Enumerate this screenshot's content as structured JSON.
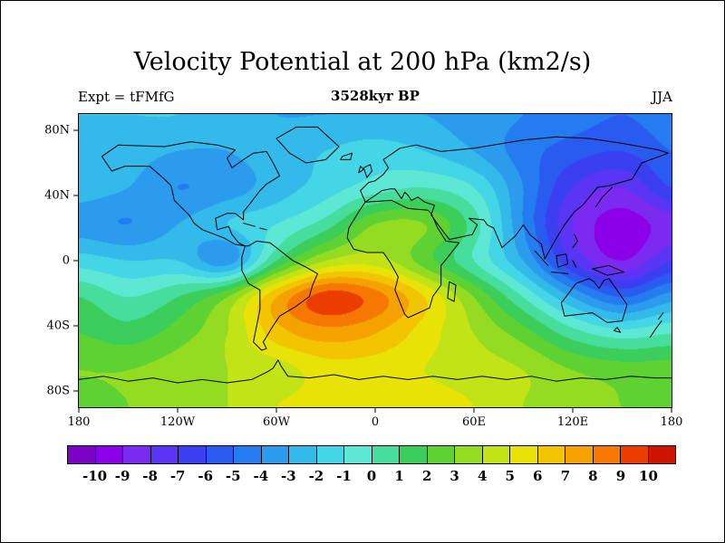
{
  "title": "Velocity Potential at 200 hPa (km2/s)",
  "expt_label": "Expt = tFMfG",
  "subtitle": "3528kyr BP",
  "season_label": "JJA",
  "axes": {
    "lat_ticks": [
      "80N",
      "40N",
      "0",
      "40S",
      "80S"
    ],
    "lon_ticks": [
      "180",
      "120W",
      "60W",
      "0",
      "60E",
      "120E",
      "180"
    ]
  },
  "colorbar": {
    "labels": [
      "-10",
      "-9",
      "-8",
      "-7",
      "-6",
      "-5",
      "-4",
      "-3",
      "-2",
      "-1",
      "0",
      "1",
      "2",
      "3",
      "4",
      "5",
      "6",
      "7",
      "8",
      "9",
      "10"
    ],
    "colors": [
      "#7d00c6",
      "#8b00e6",
      "#7b2af2",
      "#5a35f5",
      "#3a3ff2",
      "#2a5bf0",
      "#257cf0",
      "#2b9bee",
      "#33b9ea",
      "#44d5e6",
      "#5ce8d5",
      "#46dd9d",
      "#3bce5b",
      "#5ed233",
      "#93dc21",
      "#c2e316",
      "#e9e207",
      "#f3c500",
      "#f5a100",
      "#f67800",
      "#ec3d00",
      "#cd1400"
    ]
  },
  "chart_data": {
    "type": "heatmap",
    "title": "Velocity Potential at 200 hPa (km2/s)",
    "subtitle": "3528kyr BP",
    "experiment": "tFMfG",
    "season": "JJA",
    "variable": "Velocity Potential",
    "pressure_level_hPa": 200,
    "units": "km2/s",
    "projection": "equirectangular",
    "lon_range": [
      -180,
      180
    ],
    "lat_range": [
      -90,
      90
    ],
    "contour_levels": [
      -10,
      -9,
      -8,
      -7,
      -6,
      -5,
      -4,
      -3,
      -2,
      -1,
      0,
      1,
      2,
      3,
      4,
      5,
      6,
      7,
      8,
      9,
      10
    ],
    "lon": [
      -180,
      -150,
      -120,
      -90,
      -60,
      -30,
      0,
      30,
      60,
      90,
      120,
      150,
      180
    ],
    "lat": [
      90,
      67.5,
      45,
      22.5,
      0,
      -22.5,
      -45,
      -67.5,
      -90
    ],
    "values": [
      [
        -2,
        -2,
        -2,
        -2.5,
        -3,
        -3,
        -3,
        -3,
        -3.5,
        -4,
        -4.5,
        -5,
        -4.5
      ],
      [
        -2.5,
        -2.5,
        -3,
        -3,
        -2.5,
        -2,
        -1.5,
        -2,
        -3,
        -4.5,
        -5.5,
        -6,
        -5
      ],
      [
        -2.5,
        -3,
        -4,
        -3.5,
        -2.5,
        -1.5,
        -0.5,
        0,
        -1,
        -4,
        -7,
        -8,
        -6
      ],
      [
        -3.5,
        -4,
        -3,
        -2,
        -1,
        0.5,
        3,
        3,
        0.5,
        -4,
        -8,
        -9.5,
        -8.5
      ],
      [
        -1.5,
        -2,
        -2,
        -3.5,
        1,
        4,
        4.5,
        2.5,
        0,
        -3,
        -7,
        -9,
        -7
      ],
      [
        1,
        0,
        1,
        3,
        7,
        9.5,
        8.5,
        6,
        3,
        0,
        -3,
        -5,
        -3.5
      ],
      [
        2,
        1.5,
        2.5,
        4,
        6.5,
        7.5,
        7,
        5.5,
        4,
        2.5,
        0.5,
        -0.5,
        0
      ],
      [
        3,
        3,
        3.5,
        4,
        4.5,
        5.5,
        5.5,
        5,
        4.5,
        4,
        3,
        2.5,
        2.5
      ],
      [
        2.5,
        3,
        3.5,
        4,
        5,
        5.5,
        6,
        5.5,
        5,
        4,
        3.5,
        3,
        2.5
      ]
    ]
  }
}
